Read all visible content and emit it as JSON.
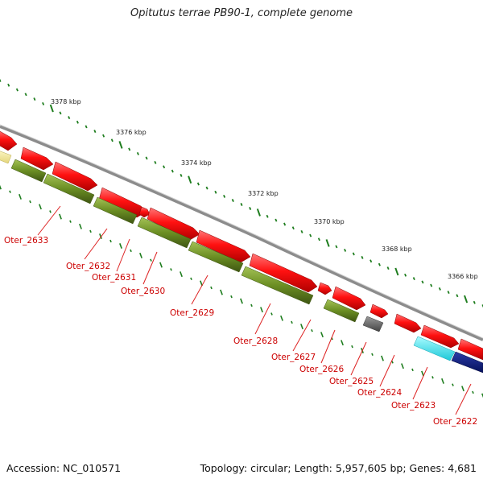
{
  "title": "Opitutus terrae PB90-1, complete genome",
  "footer": {
    "accession": "Accession: NC_010571",
    "summary": "Topology: circular; Length: 5,957,605 bp; Genes: 4,681"
  },
  "colors": {
    "forward_gene": "#ee1111",
    "cds": "#6b8e23",
    "backbone": "#8c8c8c",
    "tick": "#1e7d1e",
    "label": "#cc0000",
    "cyan_feature": "#2fe4f0",
    "navy_feature": "#0a1a7a",
    "gray_feature": "#6a6a6a",
    "pale_feature": "#f0e49a"
  },
  "ticks": [
    "3378 kbp",
    "3376 kbp",
    "3374 kbp",
    "3372 kbp",
    "3370 kbp",
    "3368 kbp",
    "3366 kbp"
  ],
  "genes": [
    "Oter_2633",
    "Oter_2632",
    "Oter_2631",
    "Oter_2630",
    "Oter_2629",
    "Oter_2628",
    "Oter_2627",
    "Oter_2626",
    "Oter_2625",
    "Oter_2624",
    "Oter_2623",
    "Oter_2622"
  ]
}
